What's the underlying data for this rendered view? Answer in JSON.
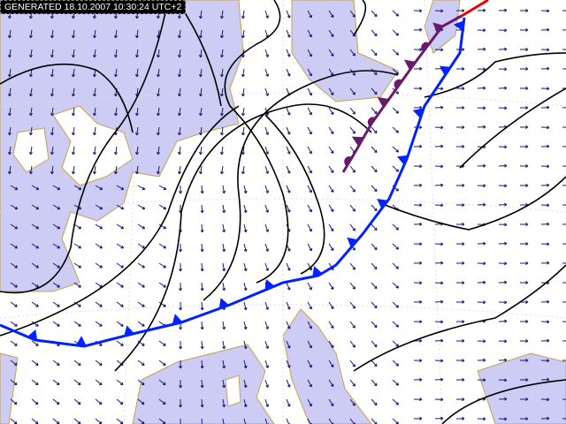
{
  "header": {
    "generated": "GENERATED 18.10.2007 10:30:24 UTC+2"
  }
}
